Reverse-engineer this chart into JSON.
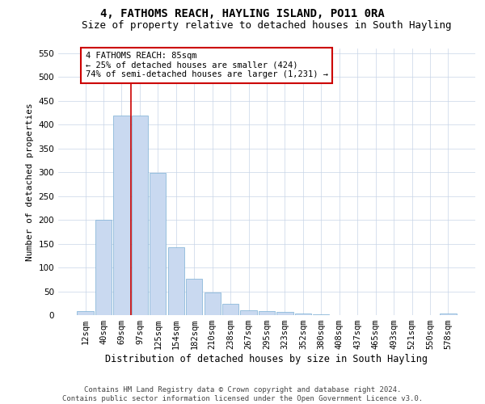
{
  "title": "4, FATHOMS REACH, HAYLING ISLAND, PO11 0RA",
  "subtitle": "Size of property relative to detached houses in South Hayling",
  "xlabel": "Distribution of detached houses by size in South Hayling",
  "ylabel": "Number of detached properties",
  "categories": [
    "12sqm",
    "40sqm",
    "69sqm",
    "97sqm",
    "125sqm",
    "154sqm",
    "182sqm",
    "210sqm",
    "238sqm",
    "267sqm",
    "295sqm",
    "323sqm",
    "352sqm",
    "380sqm",
    "408sqm",
    "437sqm",
    "465sqm",
    "493sqm",
    "521sqm",
    "550sqm",
    "578sqm"
  ],
  "values": [
    8,
    200,
    420,
    420,
    298,
    143,
    77,
    48,
    24,
    11,
    8,
    6,
    3,
    1,
    0,
    0,
    0,
    0,
    0,
    0,
    3
  ],
  "bar_color": "#c9d9f0",
  "bar_edge_color": "#7bafd4",
  "vline_x": 2.5,
  "vline_color": "#cc0000",
  "annotation_text": "4 FATHOMS REACH: 85sqm\n← 25% of detached houses are smaller (424)\n74% of semi-detached houses are larger (1,231) →",
  "annotation_box_color": "#ffffff",
  "annotation_box_edge": "#cc0000",
  "ylim": [
    0,
    560
  ],
  "yticks": [
    0,
    50,
    100,
    150,
    200,
    250,
    300,
    350,
    400,
    450,
    500,
    550
  ],
  "footer": "Contains HM Land Registry data © Crown copyright and database right 2024.\nContains public sector information licensed under the Open Government Licence v3.0.",
  "title_fontsize": 10,
  "subtitle_fontsize": 9,
  "xlabel_fontsize": 8.5,
  "ylabel_fontsize": 8,
  "tick_fontsize": 7.5,
  "footer_fontsize": 6.5,
  "bg_color": "#ffffff",
  "grid_color": "#c8d4e8"
}
